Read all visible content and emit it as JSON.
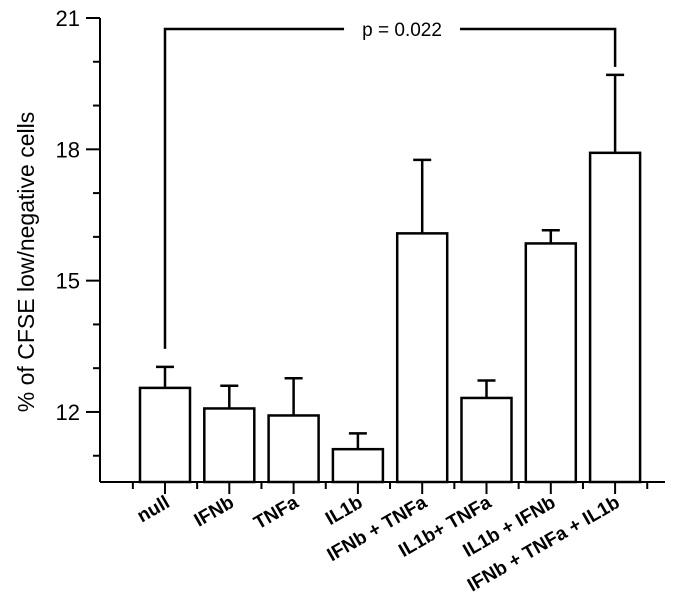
{
  "chart_data": {
    "type": "bar",
    "ylabel": "% of CFSE low/negative cells",
    "xlabel": "",
    "ylim": [
      10.4,
      21
    ],
    "yticks": [
      12,
      15,
      18,
      21
    ],
    "yticks_labels": [
      "12",
      "15",
      "18",
      "21"
    ],
    "categories": [
      "null",
      "IFNb",
      "TNFa",
      "IL1b",
      "IFNb + TNFa",
      "IL1b+ TNFa",
      "IL1b + IFNb",
      "IFNb + TNFa + IL1b"
    ],
    "values": [
      12.55,
      12.08,
      11.92,
      11.15,
      16.08,
      12.32,
      15.85,
      17.92
    ],
    "errors": [
      0.48,
      0.52,
      0.85,
      0.36,
      1.68,
      0.4,
      0.3,
      1.78
    ],
    "annotation": {
      "text": "p = 0.022",
      "from_category": 0,
      "to_category": 7,
      "y": 20.75
    },
    "grid": false,
    "legend": "none"
  }
}
